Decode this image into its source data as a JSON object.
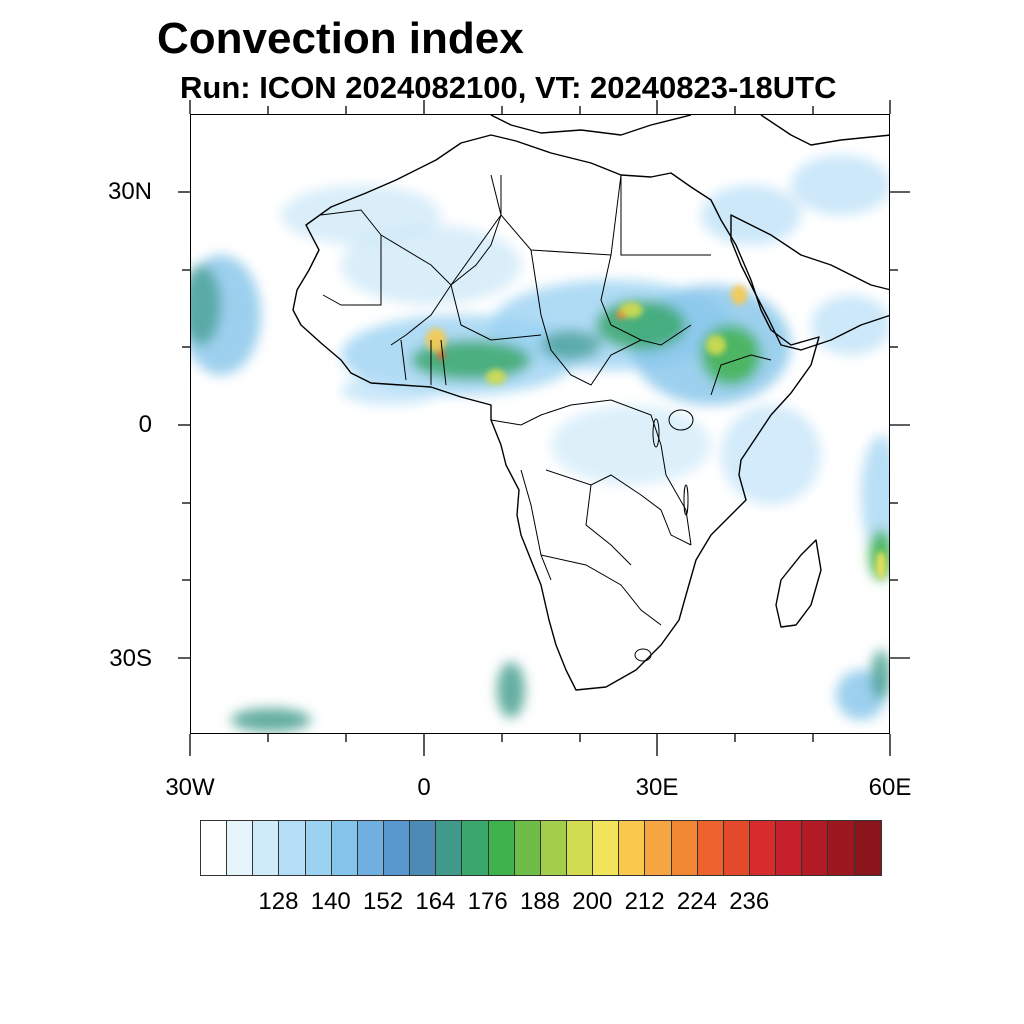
{
  "title": "Convection index",
  "subtitle": "Run: ICON 2024082100,  VT: 20240823-18UTC",
  "axes": {
    "lat_labels": [
      "30N",
      "0",
      "30S"
    ],
    "lon_labels": [
      "30W",
      "0",
      "30E",
      "60E"
    ]
  },
  "colorbar": {
    "colors": [
      "#ffffff",
      "#e6f4fc",
      "#cfeaf8",
      "#b6def6",
      "#9bd2f2",
      "#84c4ea",
      "#6fb0e0",
      "#5898cf",
      "#4d8bb6",
      "#3f9a8a",
      "#3aa86c",
      "#3fb24e",
      "#6dbd47",
      "#a3ce4b",
      "#d1dc50",
      "#f1e35a",
      "#f8c94c",
      "#f6a640",
      "#f28734",
      "#ec632d",
      "#e34a2b",
      "#d72c2b",
      "#c41f2b",
      "#b21a25",
      "#9c171f",
      "#8a151b"
    ],
    "tick_labels": [
      "128",
      "140",
      "152",
      "164",
      "176",
      "188",
      "200",
      "212",
      "224",
      "236"
    ]
  }
}
